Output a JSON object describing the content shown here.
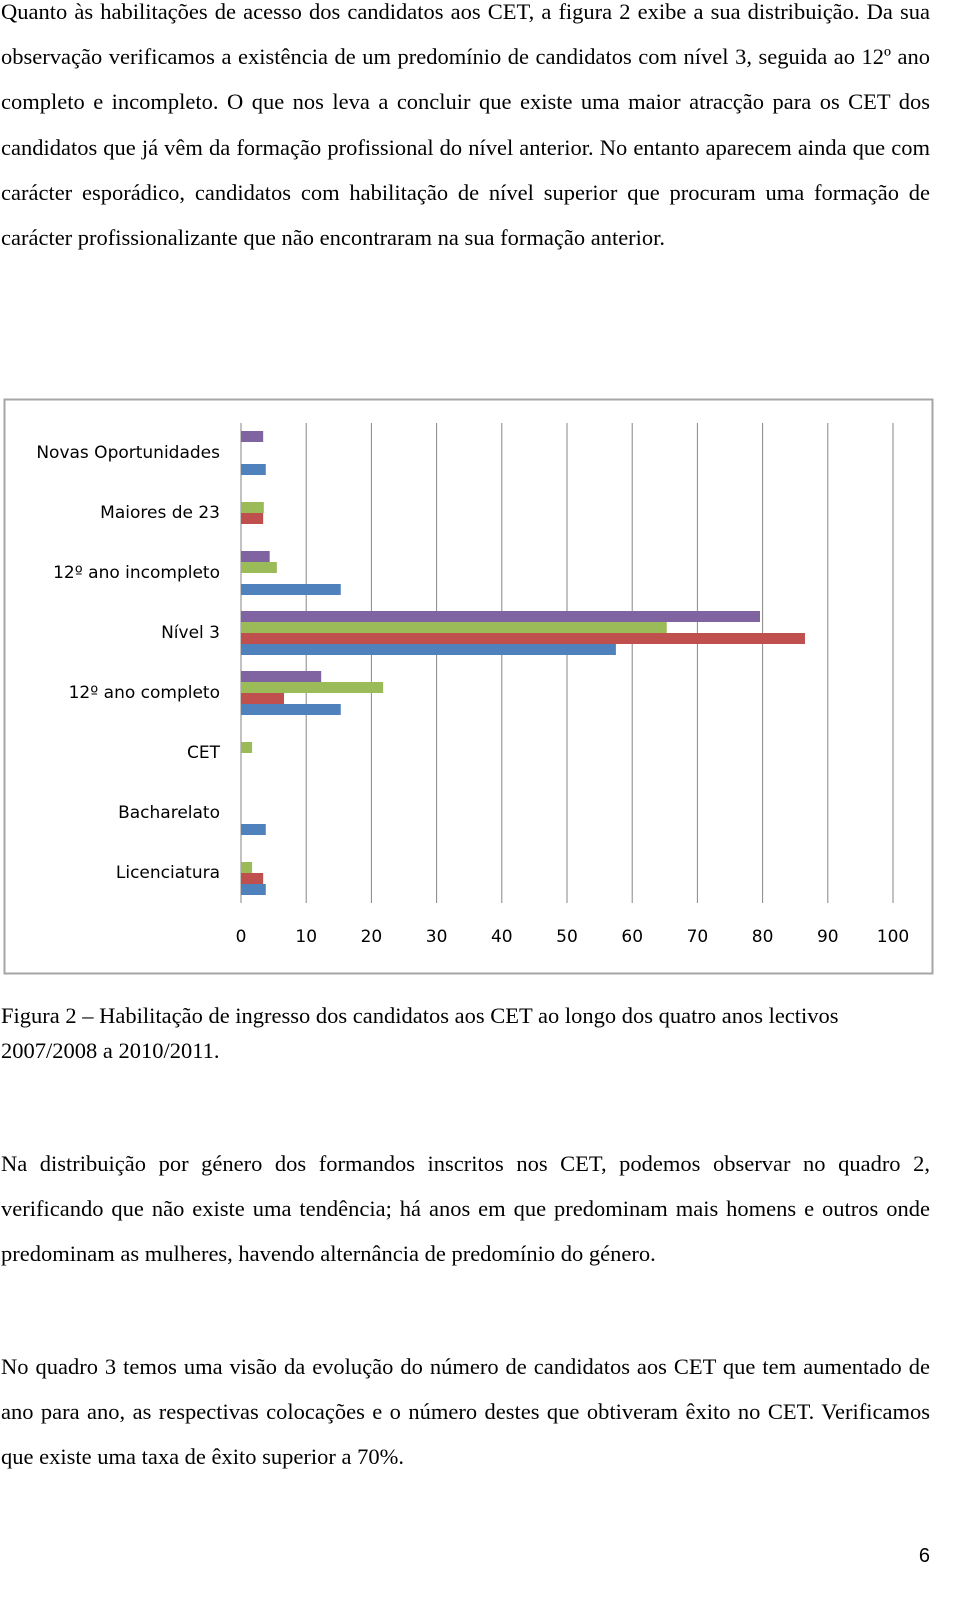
{
  "paragraphs_before": [
    "Quanto às habilitações de acesso dos candidatos aos CET, a figura 2 exibe a sua distribuição. Da sua observação verificamos a existência de um predomínio de candidatos com nível 3, seguida ao 12º ano completo e incompleto. O que nos leva a concluir que existe uma maior atracção para os CET dos candidatos que já vêm da formação profissional do nível anterior. No entanto aparecem ainda que com carácter esporádico, candidatos com habilitação de nível superior que procuram uma formação de carácter profissionalizante que não encontraram na sua formação anterior."
  ],
  "chart_data": {
    "type": "hbar",
    "categories": [
      "Novas Oportunidades",
      "Maiores de 23",
      "12º ano incompleto",
      "Nível 3",
      "12º ano completo",
      "CET",
      "Bacharelato",
      "Licenciatura"
    ],
    "series": [
      {
        "color": "#4f81bd",
        "values": [
          3.8,
          0,
          15.3,
          57.5,
          15.3,
          0,
          3.8,
          3.8
        ]
      },
      {
        "color": "#c0504d",
        "values": [
          0,
          3.4,
          0,
          86.5,
          6.6,
          0,
          0,
          3.4
        ]
      },
      {
        "color": "#9bbb59",
        "values": [
          0,
          3.5,
          5.5,
          65.3,
          21.8,
          1.7,
          0,
          1.7
        ]
      },
      {
        "color": "#8064a2",
        "values": [
          3.4,
          0,
          4.4,
          79.6,
          12.3,
          0,
          0,
          0
        ]
      }
    ],
    "xlim": [
      0,
      100
    ],
    "xticks": [
      0,
      10,
      20,
      30,
      40,
      50,
      60,
      70,
      80,
      90,
      100
    ],
    "grid": true
  },
  "caption": "Figura 2 – Habilitação de ingresso dos candidatos aos CET ao longo dos quatro anos lectivos 2007/2008 a 2010/2011.",
  "paragraphs_after": [
    "Na distribuição por género dos formandos inscritos nos CET, podemos observar no quadro 2, verificando que não existe uma tendência; há anos em que predominam mais homens e outros onde predominam as mulheres, havendo alternância de predomínio do género.",
    "No quadro 3 temos uma visão da evolução do número de candidatos aos CET que tem aumentado de ano para ano, as respectivas colocações e o número destes que obtiveram êxito no CET. Verificamos que existe uma taxa de êxito superior a 70%."
  ],
  "page_number": "6"
}
